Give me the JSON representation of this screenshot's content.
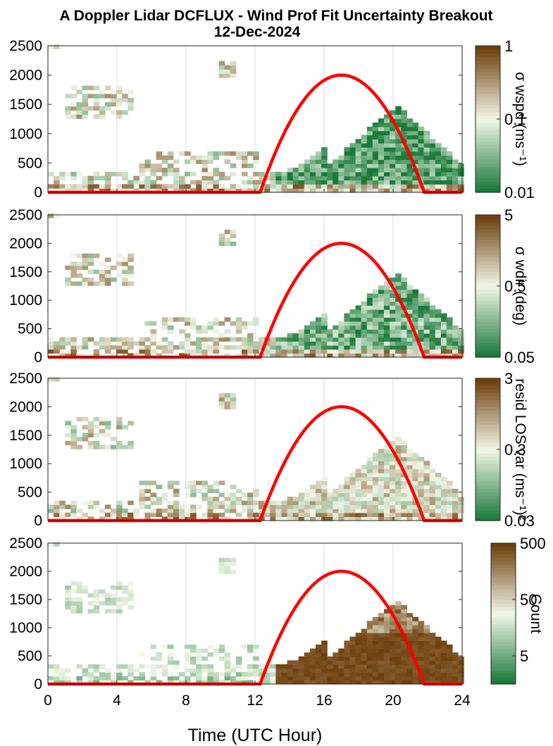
{
  "title": {
    "line1": "A Doppler Lidar DCFLUX - Wind Prof Fit Uncertainty Breakout",
    "line2": "12-Dec-2024"
  },
  "xaxis": {
    "label": "Time (UTC Hour)",
    "range": [
      0,
      24
    ],
    "ticks": [
      "0",
      "4",
      "8",
      "12",
      "16",
      "20",
      "24"
    ]
  },
  "colors": {
    "low": "#1a7a3a",
    "mid": "#f2f7e8",
    "high": "#6e3f0c",
    "curve": "#ff0000"
  },
  "chart_data": [
    {
      "type": "heatmap",
      "panel": "sigma_wspd",
      "ylim": [
        0,
        2500
      ],
      "yticks": [
        "0",
        "500",
        "1000",
        "1500",
        "2000",
        "2500"
      ],
      "grid": true,
      "colorbar": {
        "label": "σ wspd (ms⁻¹)",
        "scale": "log",
        "range": [
          0.01,
          1
        ],
        "ticks": [
          "0.01",
          "0.1",
          "1"
        ]
      },
      "dominant": "green in daytime column, mixed near surface",
      "daytime_bias": 0.0,
      "overlay_curve": {
        "description": "solar elevation arc",
        "x": [
          12.3,
          17.0,
          21.8
        ],
        "y_peak": 2000
      }
    },
    {
      "type": "heatmap",
      "panel": "sigma_wdir",
      "ylim": [
        0,
        2500
      ],
      "yticks": [
        "0",
        "500",
        "1000",
        "1500",
        "2000",
        "2500"
      ],
      "grid": true,
      "colorbar": {
        "label": "σ wdir (deg)",
        "scale": "log",
        "range": [
          0.05,
          5
        ],
        "ticks": [
          "0.05",
          "0.5",
          "5"
        ]
      },
      "daytime_bias": 0.1,
      "overlay_curve": {
        "x": [
          12.3,
          17.0,
          21.8
        ],
        "y_peak": 2000
      }
    },
    {
      "type": "heatmap",
      "panel": "resid_los_var",
      "ylim": [
        0,
        2500
      ],
      "yticks": [
        "0",
        "500",
        "1000",
        "1500",
        "2000",
        "2500"
      ],
      "grid": true,
      "colorbar": {
        "label": "resid LOS var (ms⁻¹)²",
        "scale": "log",
        "range": [
          0.03,
          3
        ],
        "ticks": [
          "0.03",
          "0.3",
          "3"
        ]
      },
      "daytime_bias": 0.55,
      "overlay_curve": {
        "x": [
          12.3,
          17.0,
          21.8
        ],
        "y_peak": 2000
      }
    },
    {
      "type": "heatmap",
      "panel": "count",
      "ylim": [
        0,
        2500
      ],
      "yticks": [
        "0",
        "500",
        "1000",
        "1500",
        "2000",
        "2500"
      ],
      "grid": true,
      "colorbar": {
        "label": "Count",
        "scale": "log",
        "range": [
          1,
          500
        ],
        "ticks": [
          "5",
          "50",
          "500"
        ]
      },
      "daytime_bias": 0.9,
      "overlay_curve": {
        "x": [
          12.3,
          17.0,
          21.8
        ],
        "y_peak": 2000
      }
    }
  ]
}
